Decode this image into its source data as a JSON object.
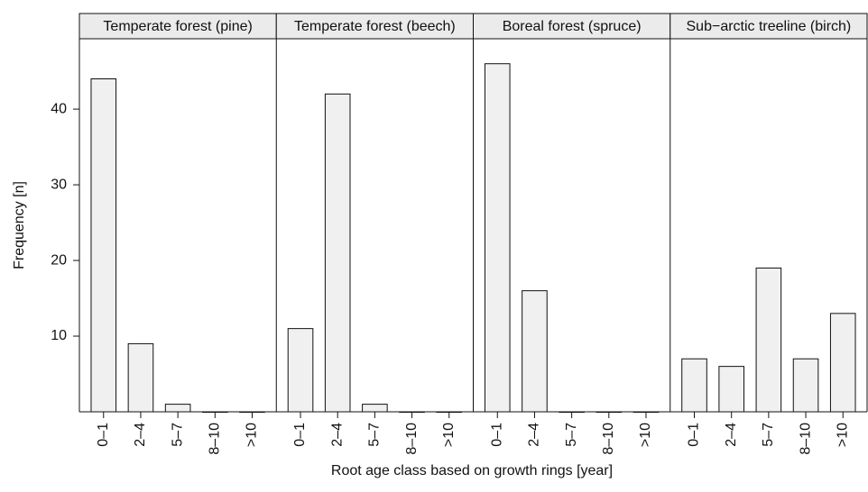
{
  "chart_data": {
    "type": "bar",
    "ylabel": "Frequency [n]",
    "xlabel": "Root age class based on growth rings [year]",
    "categories": [
      "0–1",
      "2–4",
      "5–7",
      "8–10",
      ">10"
    ],
    "ylim": [
      0,
      49.3
    ],
    "yticks": [
      10,
      20,
      30,
      40
    ],
    "color": "#f0f0f0",
    "facets": [
      {
        "title": "Temperate forest (pine)",
        "values": [
          44,
          9,
          1,
          0,
          0
        ]
      },
      {
        "title": "Temperate forest (beech)",
        "values": [
          11,
          42,
          1,
          0,
          0
        ]
      },
      {
        "title": "Boreal forest (spruce)",
        "values": [
          46,
          16,
          0,
          0,
          0
        ]
      },
      {
        "title": "Sub−arctic treeline (birch)",
        "values": [
          7,
          6,
          19,
          7,
          13
        ]
      }
    ]
  }
}
